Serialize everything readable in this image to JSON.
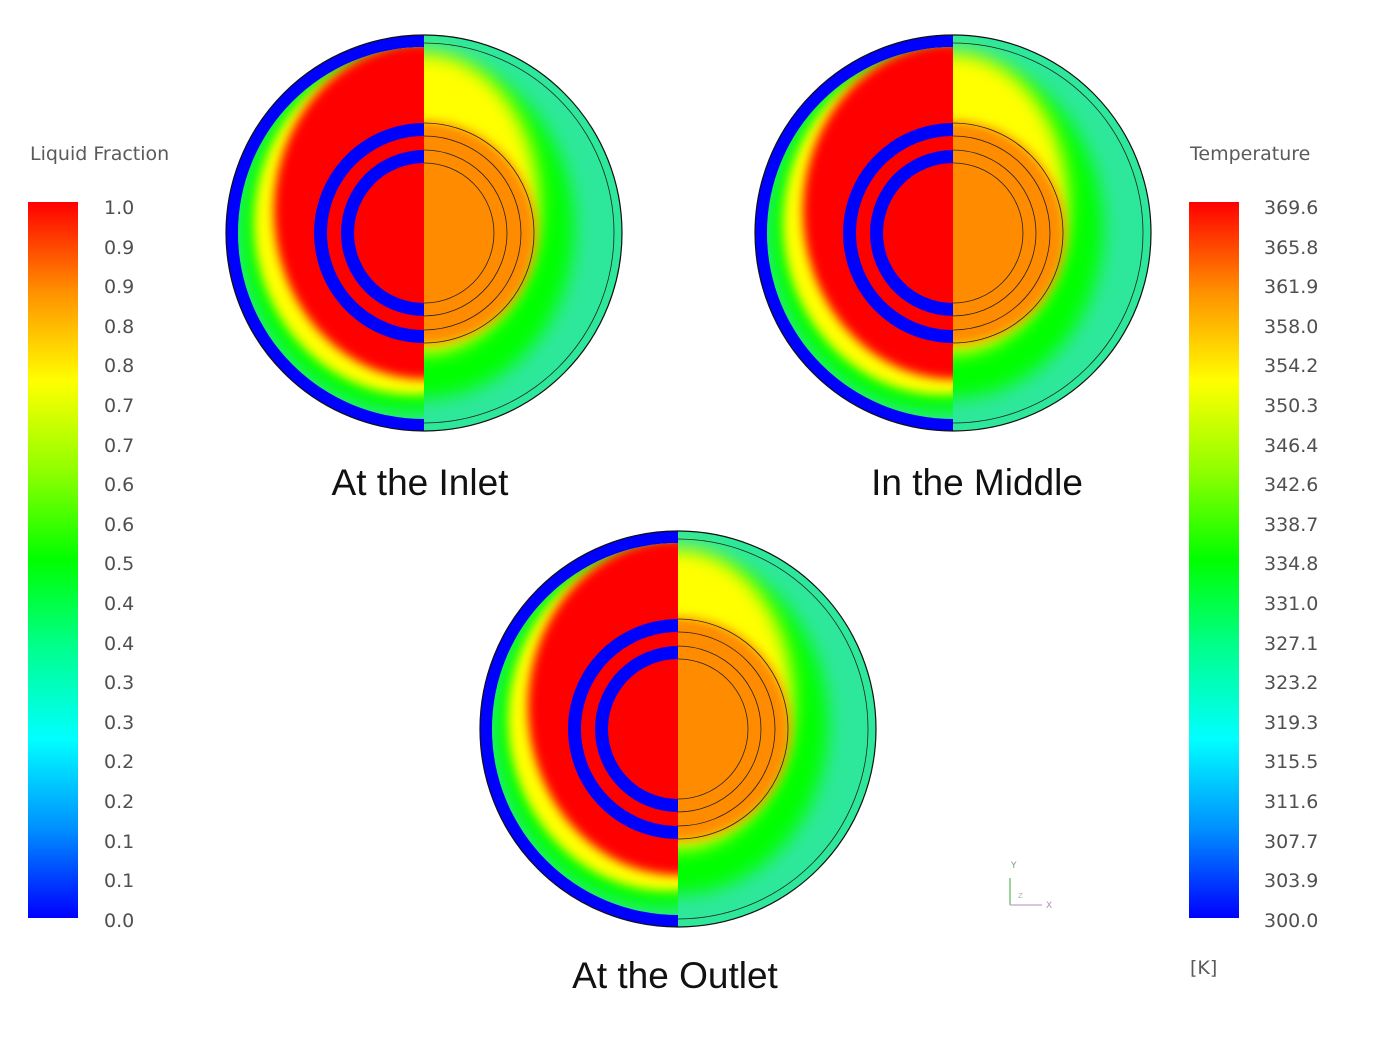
{
  "liquid_legend": {
    "title": "Liquid Fraction",
    "ticks": [
      "1.0",
      "0.9",
      "0.9",
      "0.8",
      "0.8",
      "0.7",
      "0.7",
      "0.6",
      "0.6",
      "0.5",
      "0.4",
      "0.4",
      "0.3",
      "0.3",
      "0.2",
      "0.2",
      "0.1",
      "0.1",
      "0.0"
    ]
  },
  "temperature_legend": {
    "title": "Temperature",
    "ticks": [
      "369.6",
      "365.8",
      "361.9",
      "358.0",
      "354.2",
      "350.3",
      "346.4",
      "342.6",
      "338.7",
      "334.8",
      "331.0",
      "327.1",
      "323.2",
      "319.3",
      "315.5",
      "311.6",
      "307.7",
      "303.9",
      "300.0"
    ],
    "unit": "[K]"
  },
  "sections": [
    {
      "label": "At the Inlet"
    },
    {
      "label": "In the Middle"
    },
    {
      "label": "At the Outlet"
    }
  ],
  "axis_triad": {
    "y": "Y",
    "x": "X",
    "z": "Z"
  },
  "colors": {
    "colormap": [
      "#0000ff",
      "#0090ff",
      "#00ffff",
      "#00ff90",
      "#00ff00",
      "#90ff00",
      "#ffff00",
      "#ff9000",
      "#ff0000"
    ],
    "solid": "#ff0000",
    "pcm_inner": "#ff8c00",
    "pipe_wall": "#0000ff",
    "pcm_outer": "#2de89a"
  }
}
